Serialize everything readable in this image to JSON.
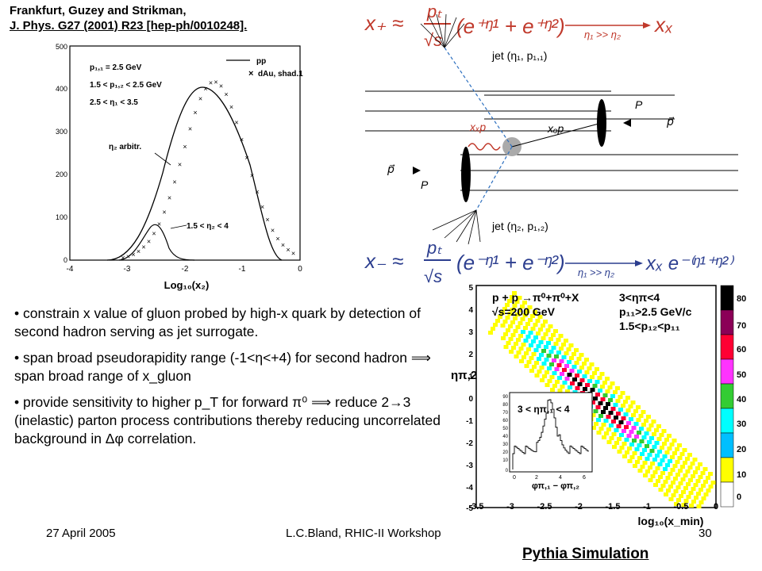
{
  "citation": {
    "line1": "Frankfurt, Guzey and Strikman,",
    "line2": "J. Phys. G27 (2001) R23 [hep-ph/0010248]."
  },
  "left_plot": {
    "legend": [
      "p₁,₁ = 2.5 GeV",
      "1.5 < p₁,₂ < 2.5 GeV",
      "2.5 < η₁ < 3.5"
    ],
    "series_pp": "pp",
    "series_dau": "dAu, shad.1",
    "annot_arbitr": "η₂ arbitr.",
    "annot_range": "1.5 < η₂ < 4",
    "xlabel": "Log₁₀(x₂)",
    "yticks": [
      "0",
      "100",
      "200",
      "300",
      "400",
      "500"
    ],
    "xticks": [
      "-4",
      "-3",
      "-2",
      "-1",
      "0"
    ]
  },
  "diagram": {
    "jet1": "jet (η₁, p₁,₁)",
    "jet2": "jet (η₂, p₁,₂)",
    "xg": "xₓp",
    "xq": "xₒp",
    "p_right": "P",
    "p_right_vec": "p⃗",
    "p_left_vec": "p⃗",
    "p_left": "P",
    "eq_top_lhs": "x₊ ≈",
    "eq_top_pt": "pₜ",
    "eq_top_sqrt": "√s",
    "eq_top_paren": "(e⁺ᵑ¹ + e⁺ᵑ²)",
    "eq_top_cond": "η₁ >> η₂",
    "eq_top_rhs": "xₓ",
    "eq_bot_lhs": "x₋ ≈",
    "eq_bot_paren": "(e⁻ᵑ¹ + e⁻ᵑ²)",
    "eq_bot_cond": "η₁ >> η₂",
    "eq_bot_rhs": "xₓ e⁻⁽ᵑ¹⁺ᵑ²⁾"
  },
  "bullets": {
    "b1": "• constrain x value of gluon probed by high-x quark by detection of second hadron serving as jet surrogate.",
    "b2": "• span broad pseudorapidity range (-1<η<+4) for second hadron ⟹ span broad range of x_gluon",
    "b3": "• provide sensitivity to higher p_T for forward π⁰ ⟹ reduce 2→3 (inelastic) parton process contributions thereby reducing uncorrelated background in Δφ correlation."
  },
  "right_plot": {
    "reaction": "p + p →π⁰+π⁰+X",
    "energy": "√s=200 GeV",
    "cut1": "3<ηπ<4",
    "cut2": "p₁₁>2.5 GeV/c",
    "cut3": "1.5<p₁₂<p₁₁",
    "ylabel": "ηπ,2",
    "xlabel": "log₁₀(x_min)",
    "yticks": [
      "5",
      "4",
      "3",
      "2",
      "1",
      "0",
      "-1",
      "-2",
      "-3",
      "-4",
      "-5"
    ],
    "xticks": [
      "-3.5",
      "-3",
      "-2.5",
      "-2",
      "-1.5",
      "-1",
      "-0.5",
      "0"
    ],
    "colorbar": [
      "80",
      "70",
      "60",
      "50",
      "40",
      "30",
      "20",
      "10",
      "0"
    ],
    "inset_label": "3 < ηπ,₁ < 4",
    "inset_xlabel": "φπ,₁ − φπ,₂",
    "inset_yticks": [
      "90",
      "80",
      "70",
      "60",
      "50",
      "40",
      "30",
      "20",
      "10",
      "0"
    ],
    "inset_xticks": [
      "0",
      "2",
      "4",
      "6"
    ]
  },
  "footer": {
    "date": "27 April 2005",
    "center": "L.C.Bland, RHIC-II Workshop",
    "page": "30"
  },
  "pythia": "Pythia Simulation"
}
